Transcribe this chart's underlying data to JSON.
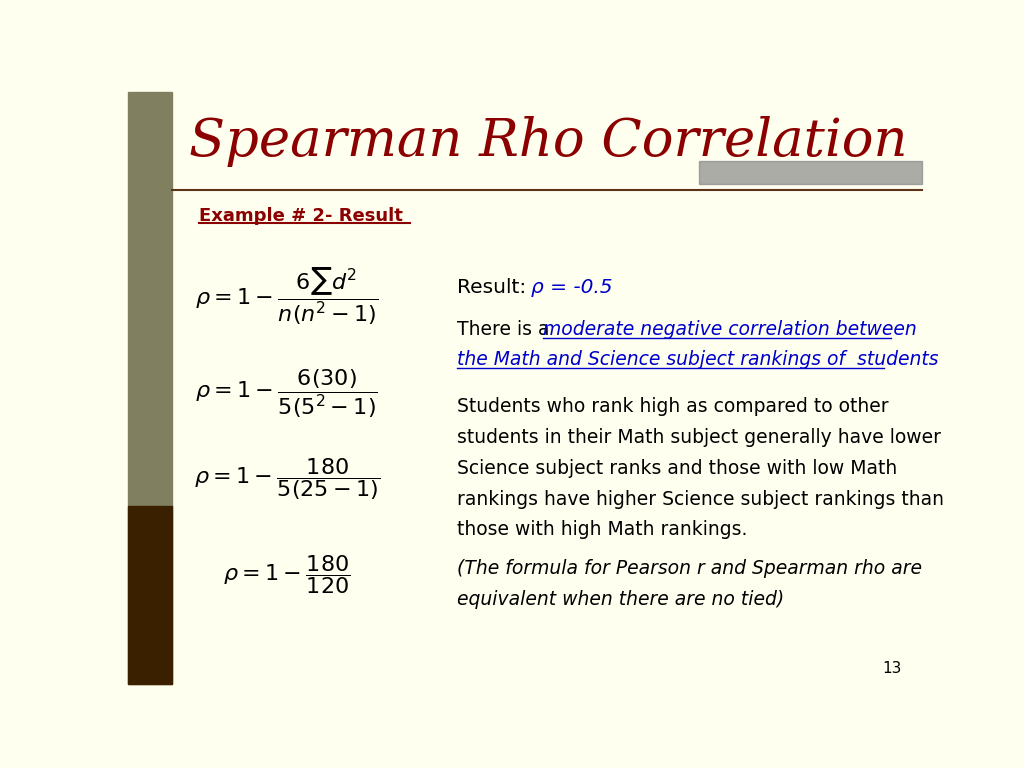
{
  "title": "Spearman Rho Correlation",
  "title_color": "#8B0000",
  "title_fontsize": 38,
  "background_color": "#FFFFF0",
  "left_bar_color": "#808060",
  "left_bar_dark": "#3B2000",
  "top_bar_color": "#808080",
  "example_label": "Example # 2- Result",
  "example_color": "#8B0000",
  "result_label": "Result:",
  "result_value": "ρ = -0.5",
  "result_value_color": "#8B0000",
  "underline_color": "#0000CD",
  "body_text_lines": [
    "Students who rank high as compared to other",
    "students in their Math subject generally have lower",
    "Science subject ranks and those with low Math",
    "rankings have higher Science subject rankings than",
    "those with high Math rankings."
  ],
  "footnote_lines": [
    "(The formula for Pearson r and Spearman rho are",
    "equivalent when there are no tied)"
  ],
  "page_number": "13",
  "formula1": "$\\rho = 1 - \\dfrac{6\\sum d^2}{n(n^2-1)}$",
  "formula2": "$\\rho = 1 - \\dfrac{6(30)}{5(5^2-1)}$",
  "formula3": "$\\rho = 1 - \\dfrac{180}{5(25-1)}$",
  "formula4": "$\\rho = 1 - \\dfrac{180}{120}$",
  "there_is_a": "There is a ",
  "underline_line1": "moderate negative correlation between",
  "underline_line2": "the Math and Science subject rankings of  students"
}
